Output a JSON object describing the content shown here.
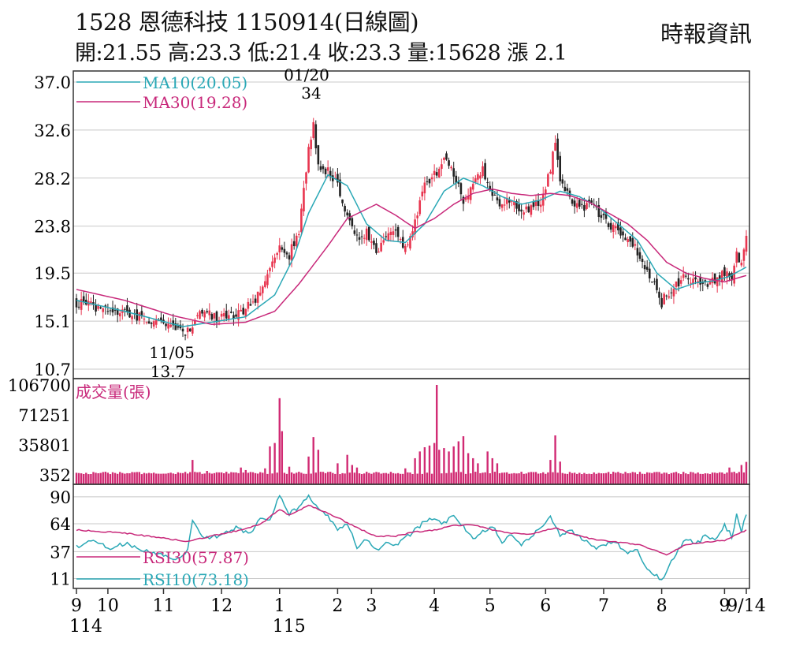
{
  "header": {
    "title_line": "1528  恩德科技 1150914(日線圖)",
    "info_line": "開:21.55 高:23.3 低:21.4 收:23.3 量:15628 漲 2.1",
    "source": "時報資訊"
  },
  "colors": {
    "up": "#e8354f",
    "down": "#222222",
    "ma10": "#2aa8b6",
    "ma30": "#c8287a",
    "volume": "#d12a73",
    "rsi30": "#c8287a",
    "rsi10": "#2aa8b6",
    "grid": "#c8c8c8",
    "frame": "#333333"
  },
  "chart_data": [
    {
      "type": "candlestick",
      "panel": "price",
      "ylim": [
        10.7,
        37.0
      ],
      "yticks": [
        "37.0",
        "32.6",
        "28.2",
        "23.8",
        "19.5",
        "15.1",
        "10.7"
      ],
      "grid": true,
      "legend": [
        {
          "key": "ma10",
          "label": "MA10(20.05)"
        },
        {
          "key": "ma30",
          "label": "MA30(19.28)"
        }
      ],
      "annotations": [
        {
          "date": "01/20",
          "value": "34"
        },
        {
          "date": "11/05",
          "value": "13.7"
        }
      ],
      "close_anchors": [
        [
          0,
          16.8
        ],
        [
          12,
          16.2
        ],
        [
          25,
          15.6
        ],
        [
          38,
          14.8
        ],
        [
          44,
          14.0
        ],
        [
          48,
          14.6
        ],
        [
          52,
          16.2
        ],
        [
          58,
          15.3
        ],
        [
          66,
          15.6
        ],
        [
          74,
          17.0
        ],
        [
          80,
          19.8
        ],
        [
          84,
          21.8
        ],
        [
          88,
          21.2
        ],
        [
          92,
          23.5
        ],
        [
          96,
          31.0
        ],
        [
          98,
          33.0
        ],
        [
          100,
          29.5
        ],
        [
          104,
          28.8
        ],
        [
          108,
          27.5
        ],
        [
          112,
          24.5
        ],
        [
          116,
          22.8
        ],
        [
          120,
          23.2
        ],
        [
          124,
          21.5
        ],
        [
          128,
          22.5
        ],
        [
          132,
          23.5
        ],
        [
          136,
          21.8
        ],
        [
          140,
          24.0
        ],
        [
          144,
          27.5
        ],
        [
          148,
          28.5
        ],
        [
          152,
          30.0
        ],
        [
          156,
          28.5
        ],
        [
          160,
          26.0
        ],
        [
          164,
          27.5
        ],
        [
          168,
          29.0
        ],
        [
          172,
          27.0
        ],
        [
          176,
          25.5
        ],
        [
          180,
          26.5
        ],
        [
          184,
          25.0
        ],
        [
          188,
          25.5
        ],
        [
          192,
          26.0
        ],
        [
          196,
          29.0
        ],
        [
          198,
          31.5
        ],
        [
          200,
          28.0
        ],
        [
          204,
          26.5
        ],
        [
          208,
          25.5
        ],
        [
          212,
          25.8
        ],
        [
          216,
          25.0
        ],
        [
          220,
          24.0
        ],
        [
          224,
          23.5
        ],
        [
          228,
          22.5
        ],
        [
          232,
          21.5
        ],
        [
          236,
          19.5
        ],
        [
          240,
          18.2
        ],
        [
          242,
          16.8
        ],
        [
          244,
          17.5
        ],
        [
          248,
          18.5
        ],
        [
          252,
          19.2
        ],
        [
          256,
          18.8
        ],
        [
          260,
          18.5
        ],
        [
          264,
          19.0
        ],
        [
          268,
          19.5
        ],
        [
          271,
          19.0
        ],
        [
          273,
          21.2
        ],
        [
          275,
          20.2
        ],
        [
          277,
          23.3
        ]
      ],
      "ma10_anchors": [
        [
          0,
          17.0
        ],
        [
          20,
          16.0
        ],
        [
          44,
          14.6
        ],
        [
          56,
          15.0
        ],
        [
          70,
          15.5
        ],
        [
          82,
          17.5
        ],
        [
          90,
          21.0
        ],
        [
          96,
          25.0
        ],
        [
          104,
          28.5
        ],
        [
          112,
          27.5
        ],
        [
          120,
          24.0
        ],
        [
          128,
          22.5
        ],
        [
          136,
          22.3
        ],
        [
          144,
          24.0
        ],
        [
          152,
          27.0
        ],
        [
          160,
          28.2
        ],
        [
          168,
          27.5
        ],
        [
          176,
          26.5
        ],
        [
          184,
          25.8
        ],
        [
          192,
          26.2
        ],
        [
          200,
          27.0
        ],
        [
          208,
          26.5
        ],
        [
          216,
          25.5
        ],
        [
          224,
          24.0
        ],
        [
          232,
          22.5
        ],
        [
          240,
          19.5
        ],
        [
          248,
          18.0
        ],
        [
          256,
          18.6
        ],
        [
          264,
          18.8
        ],
        [
          270,
          19.2
        ],
        [
          277,
          20.05
        ]
      ],
      "ma30_anchors": [
        [
          0,
          18.0
        ],
        [
          20,
          17.0
        ],
        [
          40,
          15.6
        ],
        [
          56,
          14.8
        ],
        [
          70,
          15.0
        ],
        [
          82,
          16.0
        ],
        [
          92,
          18.5
        ],
        [
          104,
          22.0
        ],
        [
          112,
          24.5
        ],
        [
          124,
          25.8
        ],
        [
          132,
          24.8
        ],
        [
          140,
          23.6
        ],
        [
          148,
          24.5
        ],
        [
          156,
          25.8
        ],
        [
          164,
          26.8
        ],
        [
          172,
          27.2
        ],
        [
          180,
          26.8
        ],
        [
          188,
          26.6
        ],
        [
          196,
          26.8
        ],
        [
          204,
          26.6
        ],
        [
          212,
          26.0
        ],
        [
          220,
          25.0
        ],
        [
          228,
          24.0
        ],
        [
          236,
          22.5
        ],
        [
          244,
          20.5
        ],
        [
          252,
          19.5
        ],
        [
          260,
          19.0
        ],
        [
          268,
          18.7
        ],
        [
          277,
          19.28
        ]
      ]
    },
    {
      "type": "bar",
      "panel": "volume",
      "title": "成交量(張)",
      "ylim": [
        352,
        106700
      ],
      "yticks": [
        "106700",
        "71251",
        "35801",
        "352"
      ],
      "spikes": [
        [
          12,
          4000
        ],
        [
          48,
          18000
        ],
        [
          54,
          5000
        ],
        [
          68,
          9000
        ],
        [
          70,
          6000
        ],
        [
          78,
          8000
        ],
        [
          80,
          34000
        ],
        [
          82,
          38000
        ],
        [
          84,
          91000
        ],
        [
          85,
          52000
        ],
        [
          88,
          10000
        ],
        [
          96,
          22000
        ],
        [
          98,
          45000
        ],
        [
          100,
          30000
        ],
        [
          108,
          14000
        ],
        [
          112,
          24000
        ],
        [
          114,
          12000
        ],
        [
          116,
          9000
        ],
        [
          136,
          8000
        ],
        [
          140,
          20000
        ],
        [
          142,
          28000
        ],
        [
          144,
          33000
        ],
        [
          146,
          35000
        ],
        [
          148,
          38000
        ],
        [
          149,
          106700
        ],
        [
          150,
          30000
        ],
        [
          152,
          32000
        ],
        [
          154,
          28000
        ],
        [
          156,
          34000
        ],
        [
          158,
          40000
        ],
        [
          160,
          46000
        ],
        [
          162,
          26000
        ],
        [
          164,
          20000
        ],
        [
          166,
          14000
        ],
        [
          170,
          28000
        ],
        [
          172,
          20000
        ],
        [
          174,
          14000
        ],
        [
          196,
          18000
        ],
        [
          198,
          47000
        ],
        [
          200,
          16000
        ],
        [
          270,
          9000
        ],
        [
          272,
          4000
        ],
        [
          275,
          12000
        ],
        [
          277,
          15628
        ]
      ]
    },
    {
      "type": "line",
      "panel": "rsi",
      "ylim": [
        6,
        96
      ],
      "yticks": [
        "90",
        "64",
        "37",
        "11"
      ],
      "legend": [
        {
          "key": "rsi30",
          "label": "RSI30(57.87)"
        },
        {
          "key": "rsi10",
          "label": "RSI10(73.18)"
        }
      ],
      "rsi30_anchors": [
        [
          0,
          58
        ],
        [
          20,
          55
        ],
        [
          36,
          50
        ],
        [
          46,
          47
        ],
        [
          56,
          52
        ],
        [
          68,
          58
        ],
        [
          76,
          63
        ],
        [
          84,
          78
        ],
        [
          88,
          72
        ],
        [
          96,
          82
        ],
        [
          100,
          78
        ],
        [
          108,
          70
        ],
        [
          116,
          60
        ],
        [
          124,
          52
        ],
        [
          132,
          52
        ],
        [
          140,
          56
        ],
        [
          148,
          58
        ],
        [
          156,
          62
        ],
        [
          164,
          63
        ],
        [
          172,
          58
        ],
        [
          180,
          55
        ],
        [
          188,
          54
        ],
        [
          198,
          60
        ],
        [
          208,
          52
        ],
        [
          216,
          48
        ],
        [
          224,
          46
        ],
        [
          232,
          44
        ],
        [
          240,
          38
        ],
        [
          244,
          34
        ],
        [
          252,
          44
        ],
        [
          260,
          46
        ],
        [
          268,
          48
        ],
        [
          277,
          57.87
        ]
      ],
      "rsi10_anchors": [
        [
          0,
          42
        ],
        [
          8,
          48
        ],
        [
          14,
          40
        ],
        [
          20,
          45
        ],
        [
          28,
          38
        ],
        [
          36,
          34
        ],
        [
          42,
          30
        ],
        [
          46,
          38
        ],
        [
          48,
          68
        ],
        [
          52,
          50
        ],
        [
          58,
          52
        ],
        [
          66,
          60
        ],
        [
          72,
          54
        ],
        [
          76,
          70
        ],
        [
          80,
          66
        ],
        [
          84,
          92
        ],
        [
          88,
          74
        ],
        [
          92,
          80
        ],
        [
          96,
          92
        ],
        [
          100,
          78
        ],
        [
          104,
          72
        ],
        [
          108,
          58
        ],
        [
          112,
          64
        ],
        [
          116,
          42
        ],
        [
          120,
          50
        ],
        [
          124,
          38
        ],
        [
          128,
          46
        ],
        [
          132,
          44
        ],
        [
          136,
          50
        ],
        [
          140,
          58
        ],
        [
          144,
          66
        ],
        [
          148,
          70
        ],
        [
          152,
          64
        ],
        [
          156,
          72
        ],
        [
          160,
          62
        ],
        [
          164,
          48
        ],
        [
          168,
          56
        ],
        [
          172,
          62
        ],
        [
          176,
          46
        ],
        [
          180,
          54
        ],
        [
          184,
          44
        ],
        [
          188,
          52
        ],
        [
          192,
          60
        ],
        [
          196,
          72
        ],
        [
          200,
          52
        ],
        [
          204,
          58
        ],
        [
          210,
          48
        ],
        [
          216,
          40
        ],
        [
          220,
          46
        ],
        [
          224,
          44
        ],
        [
          228,
          36
        ],
        [
          232,
          38
        ],
        [
          236,
          20
        ],
        [
          240,
          14
        ],
        [
          242,
          8
        ],
        [
          244,
          18
        ],
        [
          248,
          36
        ],
        [
          252,
          50
        ],
        [
          256,
          44
        ],
        [
          260,
          52
        ],
        [
          264,
          48
        ],
        [
          268,
          62
        ],
        [
          271,
          52
        ],
        [
          273,
          72
        ],
        [
          275,
          56
        ],
        [
          277,
          73.18
        ]
      ]
    }
  ],
  "x_axis": {
    "ticks": [
      {
        "i": 0,
        "month": "9",
        "year": "114"
      },
      {
        "i": 13,
        "month": "10",
        "year": ""
      },
      {
        "i": 36,
        "month": "11",
        "year": ""
      },
      {
        "i": 60,
        "month": "12",
        "year": ""
      },
      {
        "i": 84,
        "month": "1",
        "year": "115"
      },
      {
        "i": 108,
        "month": "2",
        "year": ""
      },
      {
        "i": 122,
        "month": "3",
        "year": ""
      },
      {
        "i": 148,
        "month": "4",
        "year": ""
      },
      {
        "i": 171,
        "month": "5",
        "year": ""
      },
      {
        "i": 194,
        "month": "6",
        "year": ""
      },
      {
        "i": 218,
        "month": "7",
        "year": ""
      },
      {
        "i": 242,
        "month": "8",
        "year": ""
      },
      {
        "i": 268,
        "month": "9",
        "year": ""
      },
      {
        "i": 277,
        "month": "9/14",
        "year": ""
      }
    ]
  }
}
